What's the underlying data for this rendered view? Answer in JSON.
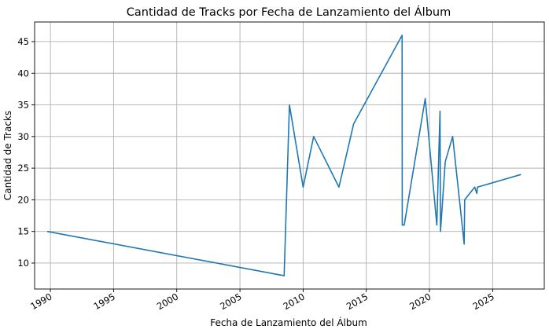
{
  "chart_data": {
    "type": "line",
    "title": "Cantidad de Tracks por Fecha de Lanzamiento del Álbum",
    "xlabel": "Fecha de Lanzamiento del Álbum",
    "ylabel": "Cantidad de Tracks",
    "x_is_date": true,
    "xlim": [
      "1988-10-01",
      "2029-02-01"
    ],
    "ylim": [
      5.9,
      48.1
    ],
    "x_ticks": [
      "1990",
      "1995",
      "2000",
      "2005",
      "2010",
      "2015",
      "2020",
      "2025"
    ],
    "y_ticks": [
      10,
      15,
      20,
      25,
      30,
      35,
      40,
      45
    ],
    "grid": true,
    "series": [
      {
        "color": "#1f77b4",
        "x": [
          "1989-10-01",
          "2008-07-01",
          "2008-12-01",
          "2010-01-01",
          "2010-11-01",
          "2012-11-01",
          "2014-01-01",
          "2017-11-01",
          "2017-11-05",
          "2018-01-01",
          "2019-09-01",
          "2020-08-01",
          "2020-11-01",
          "2020-11-15",
          "2021-04-01",
          "2021-11-01",
          "2022-10-01",
          "2022-10-15",
          "2023-08-01",
          "2023-10-01",
          "2023-10-20",
          "2027-04-01"
        ],
        "y": [
          15,
          8,
          35,
          22,
          30,
          22,
          32,
          46,
          16,
          16,
          36,
          16,
          34,
          15,
          26,
          30,
          13,
          20,
          22,
          21,
          22,
          24
        ]
      }
    ]
  }
}
